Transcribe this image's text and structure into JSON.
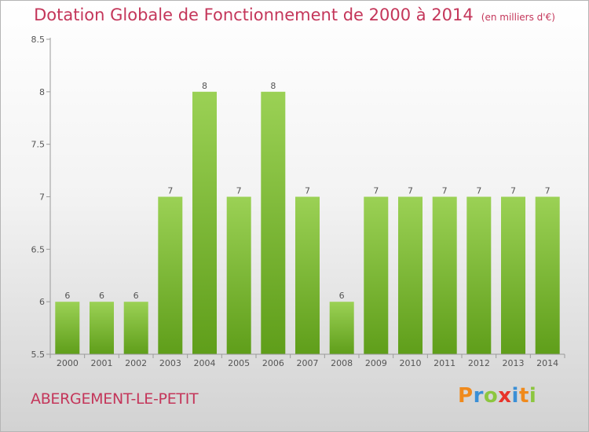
{
  "header": {
    "title": "Dotation Globale de Fonctionnement de 2000 à 2014",
    "subtitle": "(en milliers d'€)"
  },
  "footer": {
    "commune": "ABERGEMENT-LE-PETIT",
    "logo_letters": [
      "P",
      "r",
      "o",
      "x",
      "i",
      "t",
      "i"
    ],
    "logo_colors": [
      "#f08a1c",
      "#3a8fd6",
      "#8cc63f",
      "#e8332a",
      "#3a8fd6",
      "#f08a1c",
      "#8cc63f"
    ]
  },
  "colors": {
    "bar_top": "#9bd155",
    "bar_bottom": "#5f9e1a",
    "axis": "#9a9a9a",
    "accent": "#c4365a"
  },
  "chart_data": {
    "type": "bar",
    "title": "Dotation Globale de Fonctionnement de 2000 à 2014",
    "subtitle": "(en milliers d'€)",
    "categories": [
      "2000",
      "2001",
      "2002",
      "2003",
      "2004",
      "2005",
      "2006",
      "2007",
      "2008",
      "2009",
      "2010",
      "2011",
      "2012",
      "2013",
      "2014"
    ],
    "values": [
      6,
      6,
      6,
      7,
      8,
      7,
      8,
      7,
      6,
      7,
      7,
      7,
      7,
      7,
      7
    ],
    "data_labels": [
      "6",
      "6",
      "6",
      "7",
      "8",
      "7",
      "8",
      "7",
      "6",
      "7",
      "7",
      "7",
      "7",
      "7",
      "7"
    ],
    "yticks": [
      5.5,
      6,
      6.5,
      7,
      7.5,
      8,
      8.5
    ],
    "ytick_labels": [
      "5.5",
      "6",
      "6.5",
      "7",
      "7.5",
      "8",
      "8.5"
    ],
    "ylim": [
      5.5,
      8.5
    ],
    "xlabel": "",
    "ylabel": "",
    "grid": false
  }
}
